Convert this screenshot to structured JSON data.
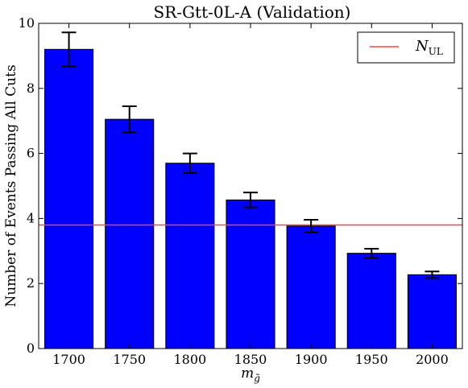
{
  "chart_data": {
    "type": "bar",
    "title": "SR-Gtt-0L-A (Validation)",
    "xlabel": "m",
    "xlabel_sub": "g̃",
    "ylabel": "Number of Events Passing All Cuts",
    "categories": [
      "1700",
      "1750",
      "1800",
      "1850",
      "1900",
      "1950",
      "2000"
    ],
    "values": [
      9.2,
      7.05,
      5.7,
      4.57,
      3.77,
      2.93,
      2.27
    ],
    "errors": [
      0.52,
      0.4,
      0.3,
      0.23,
      0.19,
      0.14,
      0.1
    ],
    "ylim": [
      0,
      10
    ],
    "yticks": [
      "0",
      "2",
      "4",
      "6",
      "8",
      "10"
    ],
    "bar_color": "#0000ff",
    "reference_line": {
      "y": 3.8,
      "color": "#ff4040",
      "name": "N",
      "name_sub": "UL"
    },
    "grid": false,
    "legend_position": "top-right"
  }
}
